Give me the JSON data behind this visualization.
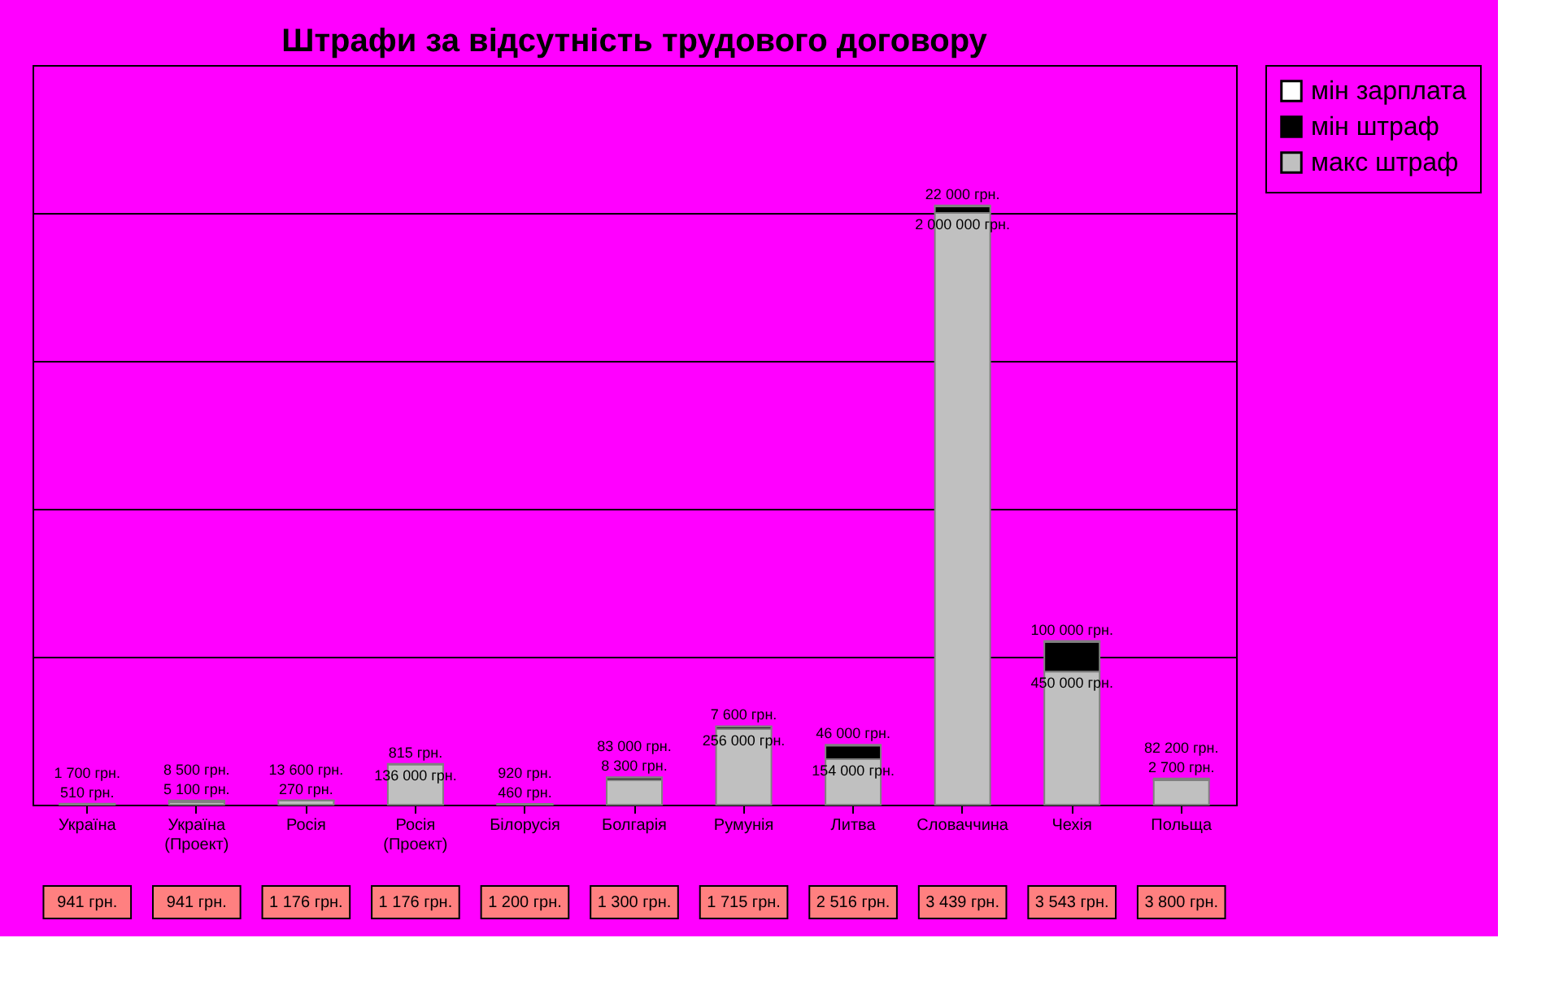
{
  "chart_data": {
    "type": "bar",
    "title": "Штрафи за відсутність трудового договору",
    "stacked": true,
    "data_labels": true,
    "categories": [
      "Україна",
      "Україна (Проект)",
      "Росія",
      "Росія (Проект)",
      "Білорусія",
      "Болгарія",
      "Румунія",
      "Литва",
      "Словаччина",
      "Чехія",
      "Польща"
    ],
    "series": [
      {
        "name": "макс штраф",
        "color": "#c0c0c0",
        "values": [
          1700,
          8500,
          13600,
          136000,
          920,
          83000,
          256000,
          154000,
          2000000,
          450000,
          82200
        ],
        "value_labels": [
          "1 700 грн.",
          "8 500 грн.",
          "13 600 грн.",
          "136 000 грн.",
          "920 грн.",
          "83 000 грн.",
          "256 000 грн.",
          "154 000 грн.",
          "2 000 000 грн.",
          "450 000 грн.",
          "82 200 грн."
        ]
      },
      {
        "name": "мін штраф",
        "color": "#000000",
        "values": [
          510,
          5100,
          270,
          815,
          460,
          8300,
          7600,
          46000,
          22000,
          100000,
          2700
        ],
        "value_labels": [
          "510 грн.",
          "5 100 грн.",
          "270 грн.",
          "815 грн.",
          "460 грн.",
          "8 300 грн.",
          "7 600 грн.",
          "46 000 грн.",
          "22 000 грн.",
          "100 000 грн.",
          "2 700 грн."
        ]
      },
      {
        "name": "мін зарплата",
        "color": "#ffffff",
        "values": [
          941,
          941,
          1176,
          1176,
          1200,
          1300,
          1715,
          2516,
          3439,
          3543,
          3800
        ],
        "value_labels": [
          "941 грн.",
          "941 грн.",
          "1 176 грн.",
          "1 176 грн.",
          "1 200 грн.",
          "1 300 грн.",
          "1 715 грн.",
          "2 516 грн.",
          "3 439 грн.",
          "3 543 грн.",
          "3 800 грн."
        ]
      }
    ],
    "ylim": [
      0,
      2500000
    ],
    "yticks": [
      {
        "value": 0,
        "label": null
      },
      {
        "value": 500000,
        "label": null
      },
      {
        "value": 1000000,
        "label": null
      },
      {
        "value": 1500000,
        "label": null
      },
      {
        "value": 2000000,
        "label": null
      },
      {
        "value": 2500000,
        "label": null
      }
    ],
    "tick_labels": "x",
    "grid": "y",
    "legend": "right"
  }
}
